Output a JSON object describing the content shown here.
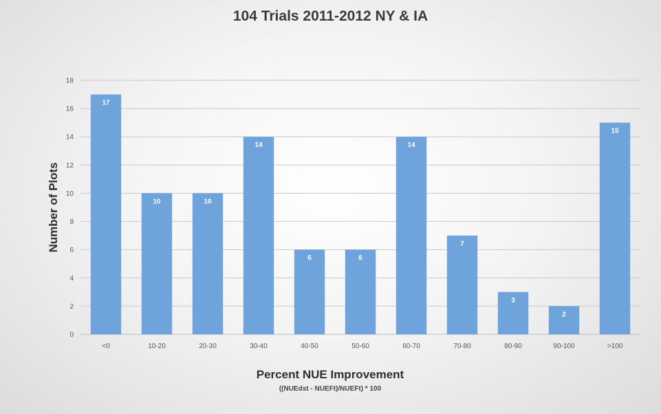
{
  "chart_data": {
    "type": "bar",
    "title": "104 Trials 2011-2012 NY & IA",
    "xlabel": "Percent NUE Improvement",
    "xlabel_sub": "((NUEdst - NUEFt)/NUEFt) * 100",
    "ylabel": "Number of Plots",
    "categories": [
      "<0",
      "10-20",
      "20-30",
      "30-40",
      "40-50",
      "50-60",
      "60-70",
      "70-80",
      "80-90",
      "90-100",
      ">100"
    ],
    "values": [
      17,
      10,
      10,
      14,
      6,
      6,
      14,
      7,
      3,
      2,
      15
    ],
    "ylim": [
      0,
      18
    ],
    "yticks": [
      0,
      2,
      4,
      6,
      8,
      10,
      12,
      14,
      16,
      18
    ],
    "grid": true,
    "legend": "none",
    "bar_color": "#6fa3dc",
    "data_labels": true
  }
}
